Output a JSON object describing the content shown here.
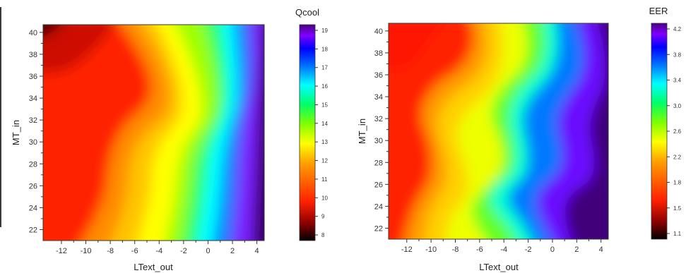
{
  "chart_data": [
    {
      "type": "heatmap",
      "title": "",
      "xlabel": "LText_out",
      "ylabel": "MT_in",
      "xlim": [
        -13.5,
        4.6
      ],
      "ylim": [
        21,
        40.7
      ],
      "xticks": [
        "-12",
        "-10",
        "-8",
        "-6",
        "-4",
        "-2",
        "0",
        "2",
        "4"
      ],
      "yticks": [
        "22",
        "24",
        "26",
        "28",
        "30",
        "32",
        "34",
        "36",
        "38",
        "40"
      ],
      "colorbar": {
        "title": "Qcool",
        "min": 8,
        "max": 19,
        "ticks": [
          "8",
          "9",
          "10",
          "11",
          "12",
          "13",
          "14",
          "15",
          "16",
          "17",
          "18",
          "19"
        ],
        "colormap": [
          "#000000",
          "#8b0000",
          "#ff2000",
          "#ff6000",
          "#ffa000",
          "#ffff00",
          "#7fff00",
          "#00ff66",
          "#00ffff",
          "#0070ff",
          "#0000ff",
          "#8000ff",
          "#4b0082"
        ]
      },
      "z_pattern": "mostly increasing with LText_out; contours bulge right near MT_in 32-34"
    },
    {
      "type": "heatmap",
      "title": "",
      "xlabel": "LText_out",
      "ylabel": "MT_in",
      "xlim": [
        -13.5,
        4.6
      ],
      "ylim": [
        21,
        40.7
      ],
      "xticks": [
        "-12",
        "-10",
        "-8",
        "-6",
        "-4",
        "-2",
        "0",
        "2",
        "4"
      ],
      "yticks": [
        "22",
        "24",
        "26",
        "28",
        "30",
        "32",
        "34",
        "36",
        "38",
        "40"
      ],
      "colorbar": {
        "title": "EER",
        "min": 1.1,
        "max": 4.2,
        "ticks": [
          "1.1",
          "1.5",
          "1.8",
          "2.2",
          "2.6",
          "3.0",
          "3.4",
          "3.8",
          "4.2"
        ],
        "colormap": [
          "#000000",
          "#8b0000",
          "#ff2000",
          "#ff6000",
          "#ffa000",
          "#ffff00",
          "#7fff00",
          "#00ff66",
          "#00ffff",
          "#0070ff",
          "#0000ff",
          "#8000ff",
          "#4b0082"
        ]
      },
      "z_pattern": "increasing with LText_out and MT_in; wavy contours with high-EER lobe near LText_out -4, MT_in 24-26"
    }
  ]
}
